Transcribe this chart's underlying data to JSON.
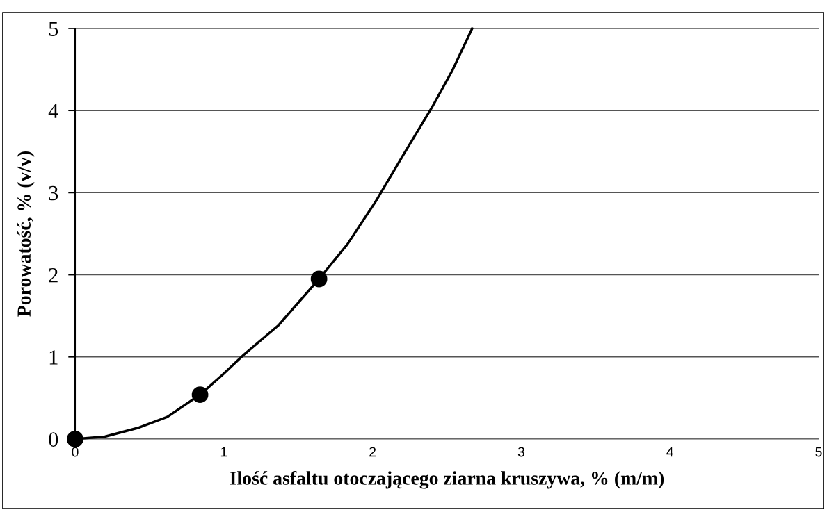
{
  "chart_data": {
    "type": "line",
    "xlabel": "Ilość asfaltu otoczającego ziarna kruszywa, % (m/m)",
    "ylabel": "Porowatość, % (v/v)",
    "xlim": [
      0,
      5
    ],
    "xticks": [
      0,
      1,
      2,
      3,
      4,
      5
    ],
    "ylim": [
      0,
      5
    ],
    "yticks": [
      0,
      1,
      2,
      3,
      4,
      5
    ],
    "grid": "y",
    "legend": false,
    "series": [
      {
        "color": "#000000",
        "marker": "none",
        "line_style": "solid",
        "x": [
          0,
          0.2,
          0.43,
          0.62,
          0.84,
          0.99,
          1.13,
          1.37,
          1.64,
          1.83,
          2.02,
          2.21,
          2.4,
          2.54,
          2.67
        ],
        "values": [
          0,
          0.03,
          0.14,
          0.27,
          0.54,
          0.78,
          1.02,
          1.39,
          1.95,
          2.37,
          2.89,
          3.47,
          4.04,
          4.5,
          5.0
        ]
      },
      {
        "type": "scatter",
        "color": "#000000",
        "marker": "circle",
        "x": [
          0,
          0.84,
          1.64
        ],
        "values": [
          0,
          0.54,
          1.95
        ]
      }
    ]
  }
}
